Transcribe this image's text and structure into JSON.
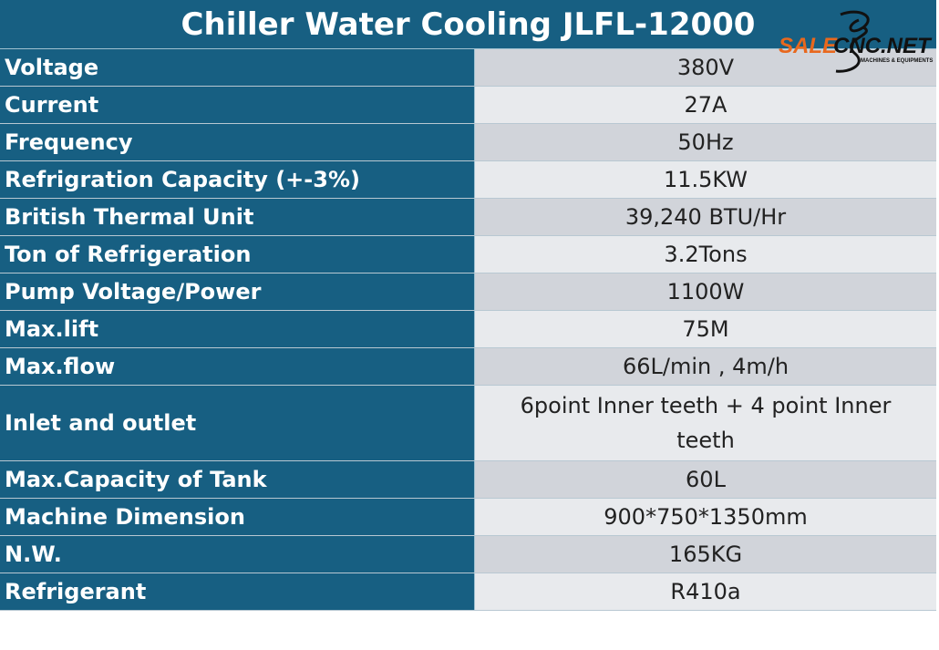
{
  "title": "Chiller Water Cooling JLFL-12000",
  "logo": {
    "brand_orange": "SALE",
    "brand_black": "CNC.NET",
    "tagline": "MACHINES & EQUIPMENTS"
  },
  "rows": [
    {
      "label": "Voltage",
      "value": "380V"
    },
    {
      "label": "Current",
      "value": "27A"
    },
    {
      "label": "Frequency",
      "value": "50Hz"
    },
    {
      "label": "Refrigration Capacity (+-3%)",
      "value": "11.5KW"
    },
    {
      "label": "British Thermal Unit",
      "value": "39,240 BTU/Hr"
    },
    {
      "label": "Ton of Refrigeration",
      "value": "3.2Tons"
    },
    {
      "label": "Pump Voltage/Power",
      "value": "1100W"
    },
    {
      "label": "Max.lift",
      "value": "75M"
    },
    {
      "label": "Max.flow",
      "value": "66L/min , 4m/h"
    },
    {
      "label": "Inlet and outlet",
      "value": "6point Inner teeth + 4 point Inner teeth"
    },
    {
      "label": "Max.Capacity of Tank",
      "value": "60L"
    },
    {
      "label": "Machine Dimension",
      "value": "900*750*1350mm"
    },
    {
      "label": "N.W.",
      "value": "165KG"
    },
    {
      "label": "Refrigerant",
      "value": "R410a"
    }
  ],
  "colors": {
    "header": "#175f82",
    "row_dark": "#d1d4da",
    "row_light": "#e8eaed",
    "logo_orange": "#e8681e"
  }
}
